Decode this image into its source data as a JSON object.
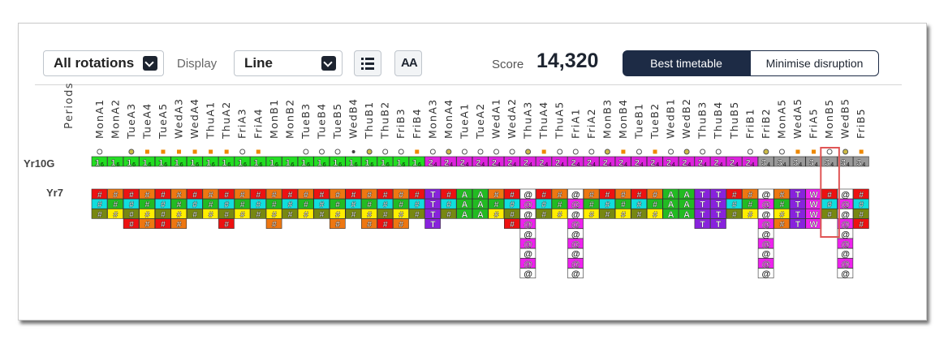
{
  "toolbar": {
    "rotation_value": "All rotations",
    "display_label": "Display",
    "display_value": "Line",
    "list_icon": "list-icon",
    "font_size_icon": "font-size-icon",
    "font_size_glyph": "AA",
    "score_label": "Score",
    "score_value": "14,320",
    "best_timetable_label": "Best timetable",
    "minimise_disruption_label": "Minimise disruption"
  },
  "grid": {
    "periods_label": "Periods",
    "periods": [
      "MonA1",
      "MonA2",
      "TueA3",
      "TueA4",
      "TueA5",
      "WedA3",
      "WedA4",
      "ThuA1",
      "ThuA2",
      "FriA3",
      "FriA4",
      "MonB1",
      "MonB2",
      "TueB3",
      "TueB4",
      "TueB5",
      "WedB4",
      "ThuB1",
      "ThuB2",
      "FriB3",
      "FriB4",
      "MonA3",
      "MonA4",
      "TueA1",
      "TueA2",
      "WedA1",
      "WedA2",
      "ThuA3",
      "ThuA4",
      "ThuA5",
      "FriA1",
      "FriA2",
      "MonB3",
      "MonB4",
      "TueB1",
      "TueB2",
      "WedB1",
      "WedB2",
      "ThuB3",
      "ThuB4",
      "ThuB5",
      "FriB1",
      "FriB2",
      "MonA5",
      "WedA5",
      "FriA5",
      "MonB5",
      "WedB5",
      "FriB5"
    ],
    "highlighted_period": "MonB5",
    "rows": [
      {
        "label": "Yr10G"
      },
      {
        "label": "Yr7"
      }
    ],
    "yr10g_markers": [
      "c",
      "",
      "c",
      "s",
      "s",
      "s",
      "s",
      "s",
      "s",
      "c",
      "s",
      "",
      "",
      "c",
      "c",
      "c",
      "d",
      "c",
      "c",
      "c",
      "s",
      "c",
      "c",
      "c",
      "c",
      "c",
      "c",
      "c",
      "s",
      "c",
      "c",
      "c",
      "c",
      "s",
      "c",
      "s",
      "c",
      "c",
      "c",
      "c",
      "",
      "c",
      "c",
      "c",
      "s",
      "s",
      "c",
      "c",
      "s"
    ],
    "yr10g_cells": [
      {
        "text": "1",
        "sub": "6",
        "color": "#22dd22",
        "span": 21
      },
      {
        "text": "2",
        "sub": "4",
        "color": "#dd22dd",
        "span": 21
      },
      {
        "text": "3",
        "sub": "4",
        "color": "#999999",
        "span": 7
      }
    ],
    "glyphs": {
      "hash": "#",
      "at": "@",
      "t": "T",
      "a": "A",
      "w": "W"
    },
    "colors": {
      "red": "#ee1111",
      "yellow": "#ffee00",
      "cyan": "#11dddd",
      "orange": "#ee7711",
      "olive": "#778811",
      "green": "#22bb22",
      "purple": "#8822dd",
      "magenta": "#ee22ee",
      "grey": "#aaaaaa",
      "highlight": "#e05555",
      "marker_orange": "#ee8800",
      "marker_olive": "#ccbb44"
    }
  }
}
